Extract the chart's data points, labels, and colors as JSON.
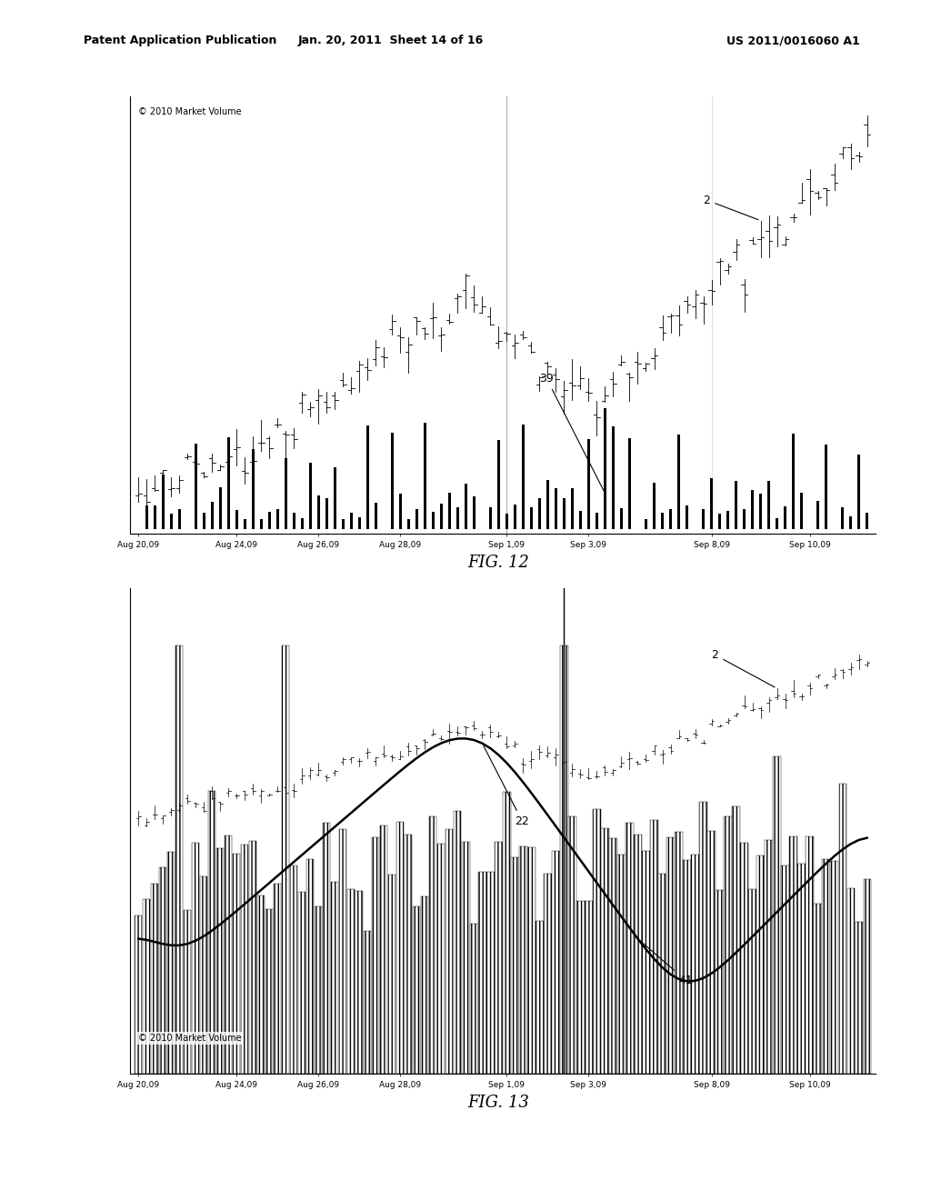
{
  "header_left": "Patent Application Publication",
  "header_mid": "Jan. 20, 2011  Sheet 14 of 16",
  "header_right": "US 2011/0016060 A1",
  "fig12_title": "FIG. 12",
  "fig13_title": "FIG. 13",
  "copyright_text": "© 2010 Market Volume",
  "x_labels": [
    "Aug 20,09",
    "Aug 24,09",
    "Aug 26,09",
    "Aug 28,09",
    "Sep 1,09",
    "Sep 3,09",
    "Sep 8,09",
    "Sep 10,09"
  ],
  "annotation_2_fig12": "2",
  "annotation_39": "39",
  "annotation_2_fig13": "2",
  "annotation_22": "22",
  "annotation_41": "41",
  "bg_color": "#ffffff",
  "line_color": "#000000",
  "n_bars": 90,
  "tick_pos": [
    0,
    12,
    22,
    32,
    45,
    55,
    70,
    82
  ],
  "seed": 42
}
